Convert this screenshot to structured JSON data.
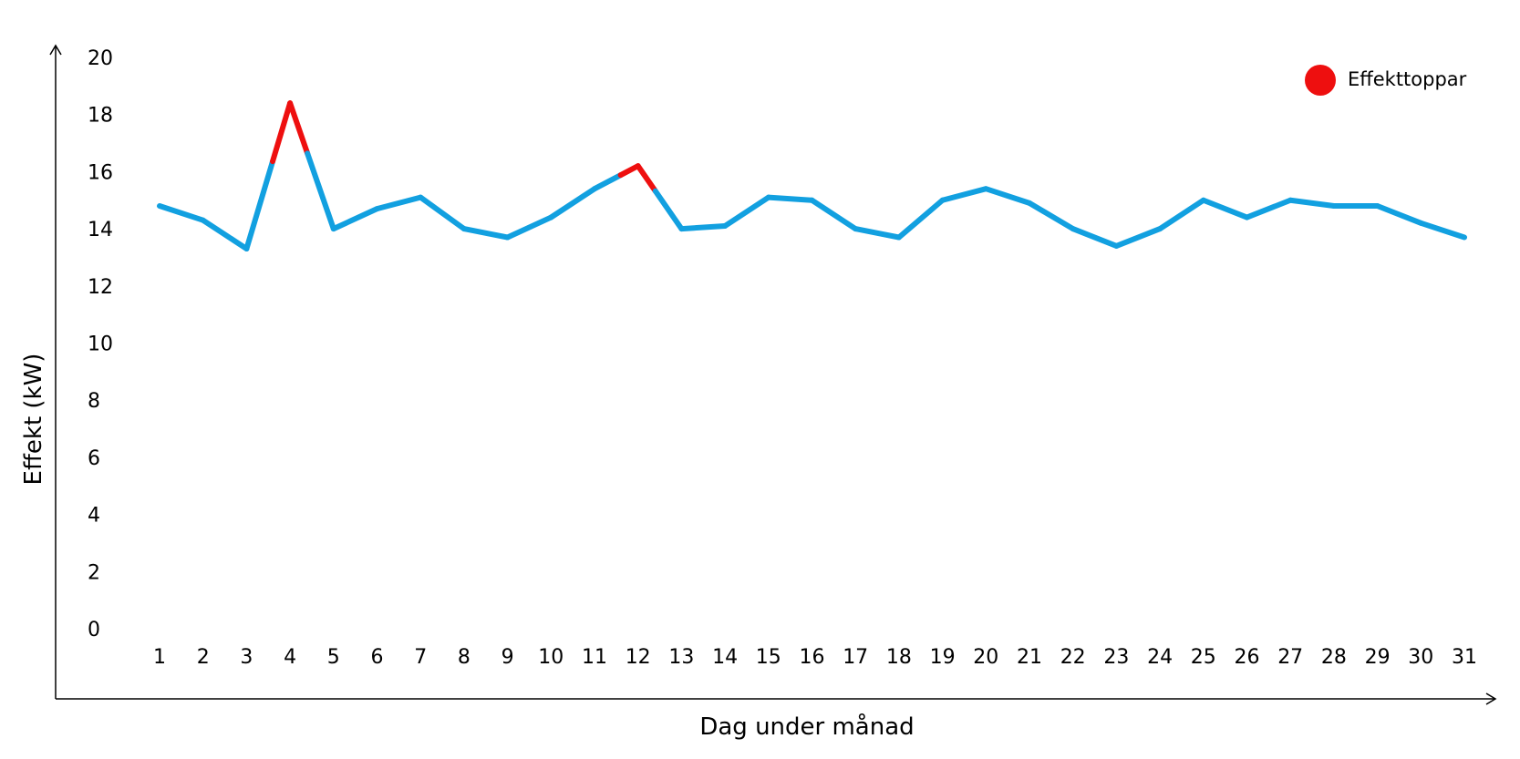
{
  "chart_data": {
    "type": "line",
    "xlabel": "Dag under månad",
    "ylabel": "Effekt  (kW)",
    "ylim": [
      0,
      20
    ],
    "yticks": [
      0,
      2,
      4,
      6,
      8,
      10,
      12,
      14,
      16,
      18,
      20
    ],
    "x": [
      1,
      2,
      3,
      4,
      5,
      6,
      7,
      8,
      9,
      10,
      11,
      12,
      13,
      14,
      15,
      16,
      17,
      18,
      19,
      20,
      21,
      22,
      23,
      24,
      25,
      26,
      27,
      28,
      29,
      30,
      31
    ],
    "series": [
      {
        "values": [
          14.8,
          14.3,
          13.3,
          18.4,
          14.0,
          14.7,
          15.1,
          14.0,
          13.7,
          14.4,
          15.4,
          16.2,
          14.0,
          14.1,
          15.1,
          15.0,
          14.0,
          13.7,
          15.0,
          15.4,
          14.9,
          14.0,
          13.4,
          14.0,
          15.0,
          14.4,
          15.0,
          14.8,
          14.8,
          14.2,
          13.7
        ],
        "color": "#12a0e0"
      }
    ],
    "peaks": [
      {
        "x": 4,
        "value": 18.4
      },
      {
        "x": 12,
        "value": 16.2
      }
    ],
    "peak_color": "#ee0f0f",
    "legend": [
      {
        "label": "Effekttoppar",
        "color": "#ee0f0f"
      }
    ],
    "legend_position": "top-right",
    "grid": false
  }
}
